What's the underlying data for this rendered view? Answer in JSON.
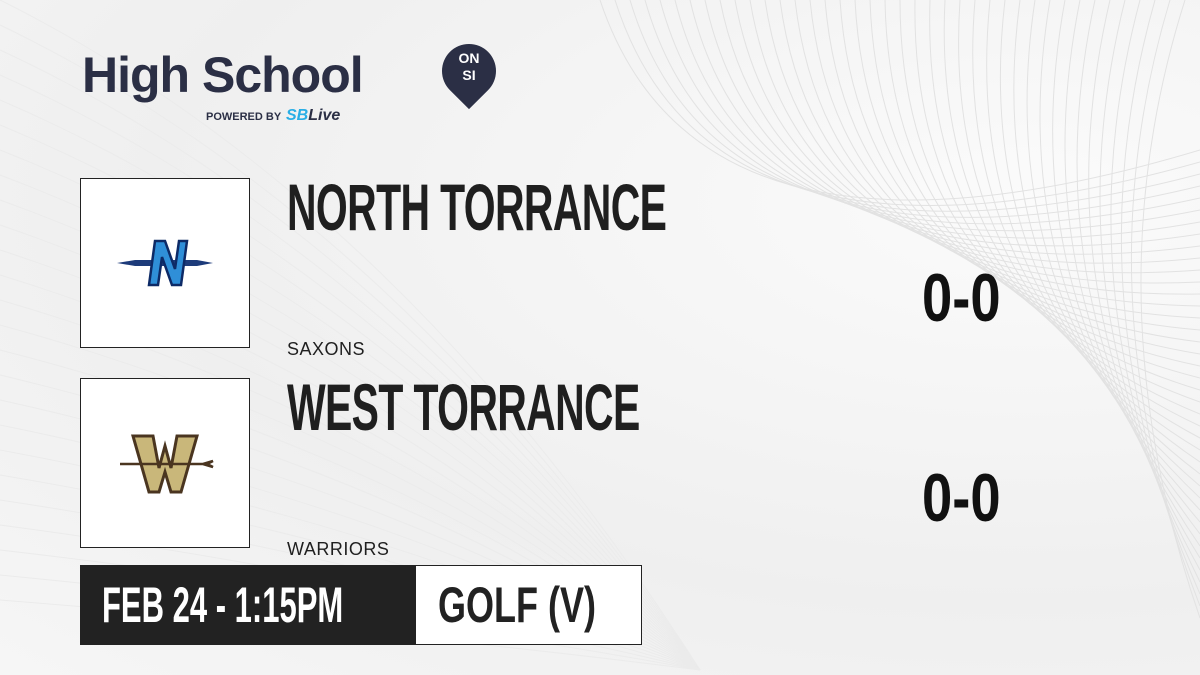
{
  "brand": {
    "title": "High School",
    "badge_top": "ON",
    "badge_bottom": "SI",
    "powered_by": "POWERED BY",
    "partner_prefix": "SB",
    "partner_suffix": "Live"
  },
  "teams": [
    {
      "name": "NORTH TORRANCE",
      "mascot": "SAXONS",
      "score": "0-0",
      "logo_color": "#1d4f9c",
      "logo_letter": "N"
    },
    {
      "name": "WEST TORRANCE",
      "mascot": "WARRIORS",
      "score": "0-0",
      "logo_color": "#c9b77a",
      "logo_letter": "W"
    }
  ],
  "event": {
    "datetime": "FEB 24 - 1:15PM",
    "sport": "GOLF (V)"
  },
  "colors": {
    "brand": "#2b2f45",
    "accent": "#29aee6",
    "dark": "#222222"
  }
}
